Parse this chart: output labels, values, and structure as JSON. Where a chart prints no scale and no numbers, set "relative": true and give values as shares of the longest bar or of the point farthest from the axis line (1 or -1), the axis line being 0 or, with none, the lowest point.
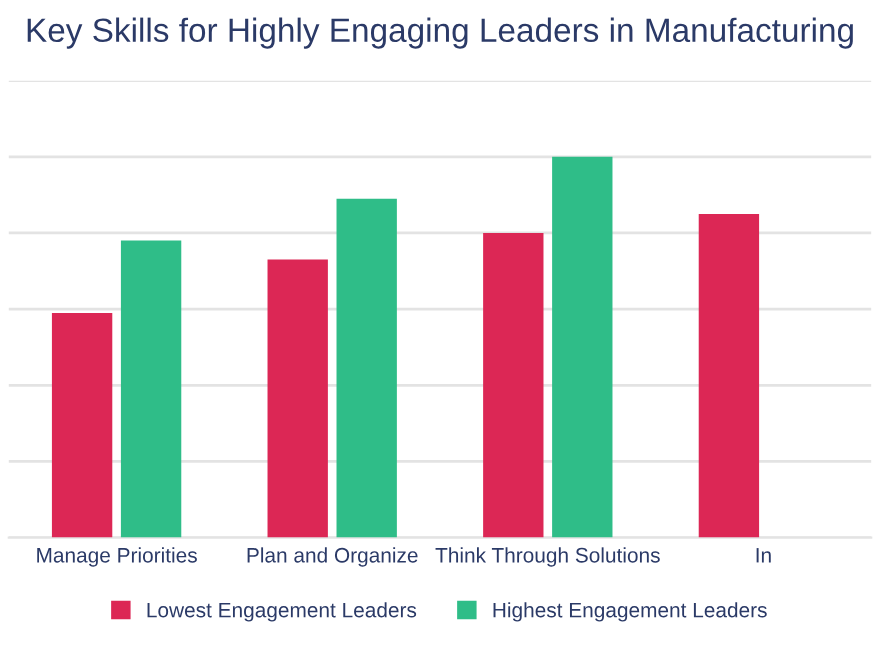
{
  "chart_data": {
    "type": "bar",
    "title": "Key Skills for Highly Engaging Leaders in Manufacturing",
    "categories": [
      "Manage Priorities",
      "Plan and Organize",
      "Think Through Solutions",
      "In"
    ],
    "relative": true,
    "series": [
      {
        "name": "Lowest Engagement Leaders",
        "color": "#dc2755",
        "values": [
          0.59,
          0.73,
          0.8,
          0.85
        ]
      },
      {
        "name": "Highest Engagement Leaders",
        "color": "#2fbd88",
        "values": [
          0.78,
          0.89,
          1,
          null
        ]
      }
    ],
    "grid": "y",
    "legend": "bottom"
  }
}
